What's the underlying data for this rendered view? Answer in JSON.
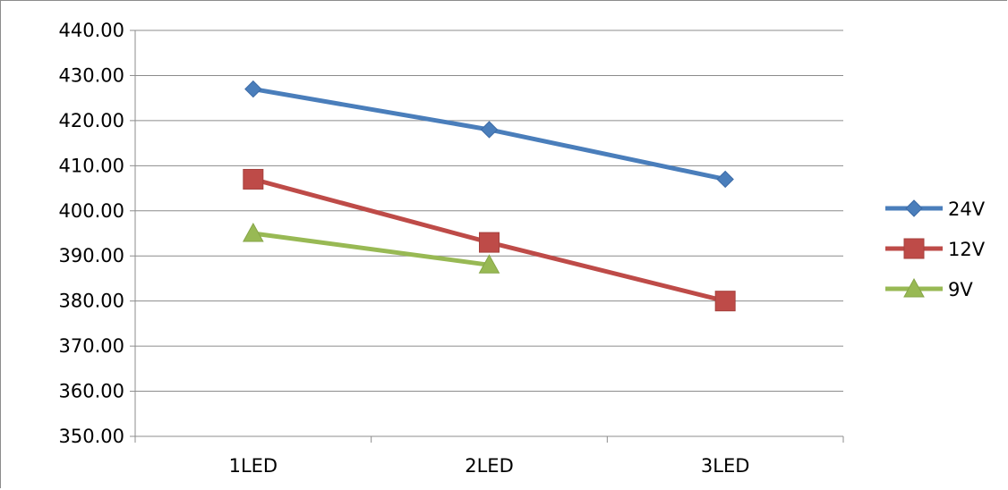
{
  "chart_data": {
    "type": "line",
    "title": "",
    "xlabel": "",
    "ylabel": "",
    "categories": [
      "1LED",
      "2LED",
      "3LED"
    ],
    "ylim": [
      350,
      440
    ],
    "yticks": [
      "350.00",
      "360.00",
      "370.00",
      "380.00",
      "390.00",
      "400.00",
      "410.00",
      "420.00",
      "430.00",
      "440.00"
    ],
    "grid": true,
    "legend_position": "right",
    "series": [
      {
        "name": "24V",
        "values": [
          427,
          418,
          407
        ],
        "color": "#4a7ebb",
        "marker": "diamond"
      },
      {
        "name": "12V",
        "values": [
          407,
          393,
          380
        ],
        "color": "#be4b48",
        "marker": "square"
      },
      {
        "name": "9V",
        "values": [
          395,
          388,
          null
        ],
        "color": "#98b954",
        "marker": "triangle"
      }
    ]
  }
}
